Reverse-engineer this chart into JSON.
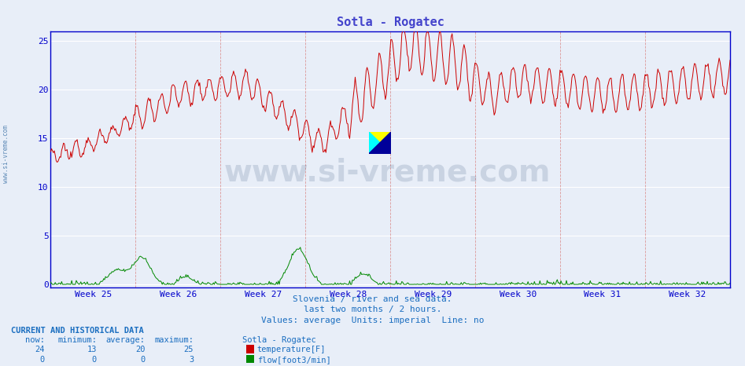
{
  "title": "Sotla - Rogatec",
  "title_color": "#4444cc",
  "bg_color": "#e8eef8",
  "plot_bg_color": "#e8eef8",
  "grid_color_h": "#ffffff",
  "grid_color_v": "#dd9999",
  "temp_color": "#cc0000",
  "flow_color": "#008800",
  "axis_color": "#0000cc",
  "ylim": [
    0,
    26
  ],
  "yticks": [
    0,
    5,
    10,
    15,
    20,
    25
  ],
  "weeks": [
    "Week 25",
    "Week 26",
    "Week 27",
    "Week 28",
    "Week 29",
    "Week 30",
    "Week 31",
    "Week 32"
  ],
  "footer_line1": "Slovenia / river and sea data.",
  "footer_line2": "last two months / 2 hours.",
  "footer_line3": "Values: average  Units: imperial  Line: no",
  "footer_color": "#1a6ec0",
  "watermark_text": "www.si-vreme.com",
  "watermark_color": "#1a3a7a",
  "sidebar_text": "www.si-vreme.com",
  "sidebar_color": "#4477aa",
  "legend_title": "Sotla - Rogatec",
  "legend_items": [
    {
      "label": "temperature[F]",
      "color": "#cc0000",
      "now": 24,
      "min": 13,
      "avg": 20,
      "max": 25
    },
    {
      "label": "flow[foot3/min]",
      "color": "#008800",
      "now": 0,
      "min": 0,
      "avg": 0,
      "max": 3
    }
  ],
  "table_headers": [
    "now:",
    "minimum:",
    "average:",
    "maximum:"
  ],
  "current_and_hist": "CURRENT AND HISTORICAL DATA",
  "flow_scale": 8.67,
  "temp_max": 26
}
